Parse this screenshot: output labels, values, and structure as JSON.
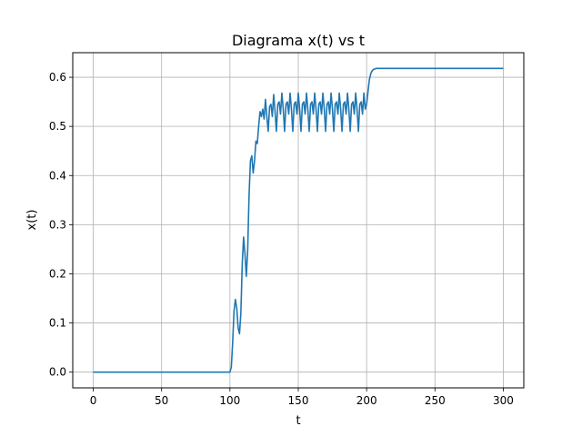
{
  "chart_data": {
    "type": "line",
    "title": "Diagrama x(t) vs t",
    "xlabel": "t",
    "ylabel": "x(t)",
    "xlim": [
      -15,
      315
    ],
    "ylim": [
      -0.032,
      0.65
    ],
    "xticks": [
      0,
      50,
      100,
      150,
      200,
      250,
      300
    ],
    "yticks": [
      0.0,
      0.1,
      0.2,
      0.3,
      0.4,
      0.5,
      0.6
    ],
    "grid": true,
    "color": "#1f77b4",
    "series": [
      {
        "x": [
          0,
          100,
          101,
          102,
          103,
          104,
          105,
          106,
          107,
          108,
          109,
          110,
          111,
          112,
          113,
          114,
          115,
          116,
          117,
          118,
          119,
          120,
          121,
          122,
          123,
          124,
          125,
          126,
          127,
          128,
          129,
          130,
          131,
          132,
          133,
          134,
          135,
          136,
          137,
          138,
          139,
          140,
          141,
          142,
          143,
          144,
          145,
          146,
          147,
          148,
          149,
          150,
          151,
          152,
          153,
          154,
          155,
          156,
          157,
          158,
          159,
          160,
          161,
          162,
          163,
          164,
          165,
          166,
          167,
          168,
          169,
          170,
          171,
          172,
          173,
          174,
          175,
          176,
          177,
          178,
          179,
          180,
          181,
          182,
          183,
          184,
          185,
          186,
          187,
          188,
          189,
          190,
          191,
          192,
          193,
          194,
          195,
          196,
          197,
          198,
          199,
          200,
          201,
          202,
          203,
          204,
          205,
          206,
          207,
          208,
          210,
          215,
          220,
          250,
          300
        ],
        "y": [
          0.0,
          0.0,
          0.01,
          0.06,
          0.125,
          0.148,
          0.13,
          0.09,
          0.078,
          0.12,
          0.22,
          0.275,
          0.24,
          0.195,
          0.25,
          0.36,
          0.43,
          0.44,
          0.405,
          0.43,
          0.47,
          0.465,
          0.5,
          0.53,
          0.52,
          0.535,
          0.515,
          0.555,
          0.52,
          0.49,
          0.54,
          0.545,
          0.52,
          0.565,
          0.53,
          0.49,
          0.545,
          0.55,
          0.525,
          0.568,
          0.535,
          0.49,
          0.545,
          0.55,
          0.525,
          0.568,
          0.535,
          0.49,
          0.545,
          0.55,
          0.525,
          0.568,
          0.535,
          0.49,
          0.545,
          0.55,
          0.525,
          0.568,
          0.535,
          0.49,
          0.545,
          0.55,
          0.525,
          0.568,
          0.535,
          0.49,
          0.545,
          0.55,
          0.525,
          0.568,
          0.535,
          0.49,
          0.545,
          0.55,
          0.525,
          0.568,
          0.535,
          0.49,
          0.545,
          0.55,
          0.525,
          0.568,
          0.535,
          0.49,
          0.545,
          0.55,
          0.525,
          0.568,
          0.535,
          0.49,
          0.545,
          0.55,
          0.525,
          0.568,
          0.535,
          0.49,
          0.545,
          0.55,
          0.525,
          0.568,
          0.535,
          0.545,
          0.57,
          0.595,
          0.607,
          0.613,
          0.616,
          0.617,
          0.618,
          0.618,
          0.618,
          0.618,
          0.618,
          0.618,
          0.618
        ]
      }
    ]
  }
}
